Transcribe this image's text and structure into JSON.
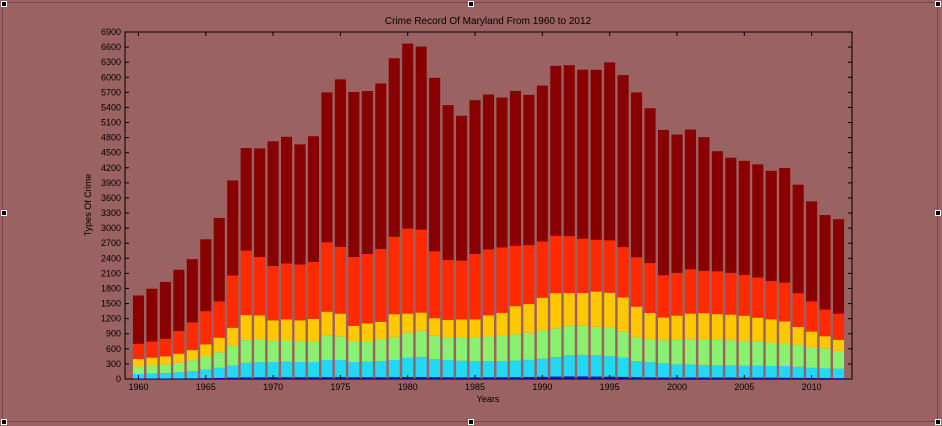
{
  "chart_data": {
    "type": "bar",
    "stacked": true,
    "title": "Crime Record Of Maryland From 1960 to 2012",
    "xlabel": "Years",
    "ylabel": "Types Of Crime",
    "ylim": [
      0,
      6900
    ],
    "xlim": [
      1959,
      2013
    ],
    "yticks": [
      0,
      300,
      600,
      900,
      1200,
      1500,
      1800,
      2100,
      2400,
      2700,
      3000,
      3300,
      3600,
      3900,
      4200,
      4500,
      4800,
      5100,
      5400,
      5700,
      6000,
      6300,
      6600,
      6900
    ],
    "xticks": [
      1960,
      1965,
      1970,
      1975,
      1980,
      1985,
      1990,
      1995,
      2000,
      2005,
      2010
    ],
    "grid": false,
    "legend": "none",
    "x": [
      1960,
      1961,
      1962,
      1963,
      1964,
      1965,
      1966,
      1967,
      1968,
      1969,
      1970,
      1971,
      1972,
      1973,
      1974,
      1975,
      1976,
      1977,
      1978,
      1979,
      1980,
      1981,
      1982,
      1983,
      1984,
      1985,
      1986,
      1987,
      1988,
      1989,
      1990,
      1991,
      1992,
      1993,
      1994,
      1995,
      1996,
      1997,
      1998,
      1999,
      2000,
      2001,
      2002,
      2003,
      2004,
      2005,
      2006,
      2007,
      2008,
      2009,
      2010,
      2011,
      2012
    ],
    "series": [
      {
        "color": "#1010b0",
        "values": [
          10,
          10,
          10,
          12,
          14,
          18,
          22,
          28,
          32,
          34,
          36,
          36,
          36,
          36,
          38,
          38,
          36,
          36,
          36,
          38,
          40,
          40,
          38,
          36,
          34,
          34,
          36,
          36,
          38,
          40,
          44,
          48,
          50,
          50,
          48,
          46,
          42,
          38,
          34,
          32,
          30,
          30,
          30,
          30,
          30,
          28,
          28,
          28,
          26,
          24,
          22,
          20,
          18
        ]
      },
      {
        "color": "#22d8f4",
        "values": [
          90,
          100,
          110,
          120,
          140,
          170,
          200,
          240,
          290,
          300,
          300,
          310,
          300,
          300,
          340,
          340,
          300,
          310,
          320,
          340,
          380,
          400,
          360,
          340,
          330,
          320,
          320,
          320,
          330,
          340,
          360,
          390,
          420,
          430,
          430,
          410,
          380,
          320,
          300,
          280,
          260,
          260,
          250,
          240,
          240,
          240,
          240,
          230,
          230,
          220,
          200,
          190,
          190
        ]
      },
      {
        "color": "#8af070",
        "values": [
          150,
          160,
          170,
          190,
          220,
          260,
          310,
          390,
          450,
          450,
          400,
          420,
          400,
          420,
          490,
          470,
          400,
          400,
          420,
          460,
          500,
          520,
          460,
          450,
          450,
          470,
          490,
          500,
          520,
          540,
          560,
          570,
          590,
          580,
          560,
          560,
          520,
          480,
          460,
          460,
          500,
          510,
          510,
          520,
          500,
          490,
          480,
          470,
          460,
          440,
          420,
          400,
          350
        ]
      },
      {
        "color": "#ffc800",
        "values": [
          150,
          155,
          160,
          180,
          200,
          240,
          290,
          360,
          500,
          480,
          430,
          420,
          430,
          440,
          470,
          450,
          320,
          360,
          360,
          450,
          380,
          360,
          350,
          350,
          370,
          360,
          420,
          460,
          560,
          570,
          650,
          700,
          650,
          650,
          700,
          700,
          680,
          600,
          520,
          450,
          470,
          500,
          520,
          500,
          510,
          500,
          470,
          460,
          430,
          350,
          300,
          240,
          220
        ]
      },
      {
        "color": "#ff2a00",
        "values": [
          300,
          320,
          350,
          450,
          550,
          660,
          720,
          1040,
          1280,
          1160,
          1080,
          1110,
          1110,
          1130,
          1380,
          1330,
          1370,
          1380,
          1450,
          1540,
          1690,
          1650,
          1330,
          1190,
          1170,
          1300,
          1310,
          1300,
          1200,
          1170,
          1120,
          1140,
          1130,
          1080,
          1030,
          1040,
          1000,
          980,
          990,
          840,
          850,
          880,
          840,
          850,
          830,
          810,
          800,
          760,
          770,
          670,
          600,
          530,
          520
        ]
      },
      {
        "color": "#880000",
        "values": [
          960,
          1050,
          1130,
          1220,
          1260,
          1430,
          1660,
          1890,
          2040,
          2160,
          2480,
          2520,
          2390,
          2500,
          2980,
          3330,
          3280,
          3240,
          3290,
          3550,
          3680,
          3640,
          3450,
          3080,
          2880,
          3060,
          3080,
          2980,
          3080,
          2990,
          3100,
          3380,
          3400,
          3360,
          3380,
          3540,
          3420,
          3280,
          3080,
          2890,
          2750,
          2780,
          2660,
          2390,
          2290,
          2270,
          2250,
          2190,
          2280,
          2160,
          1990,
          1880,
          1880
        ]
      }
    ]
  }
}
